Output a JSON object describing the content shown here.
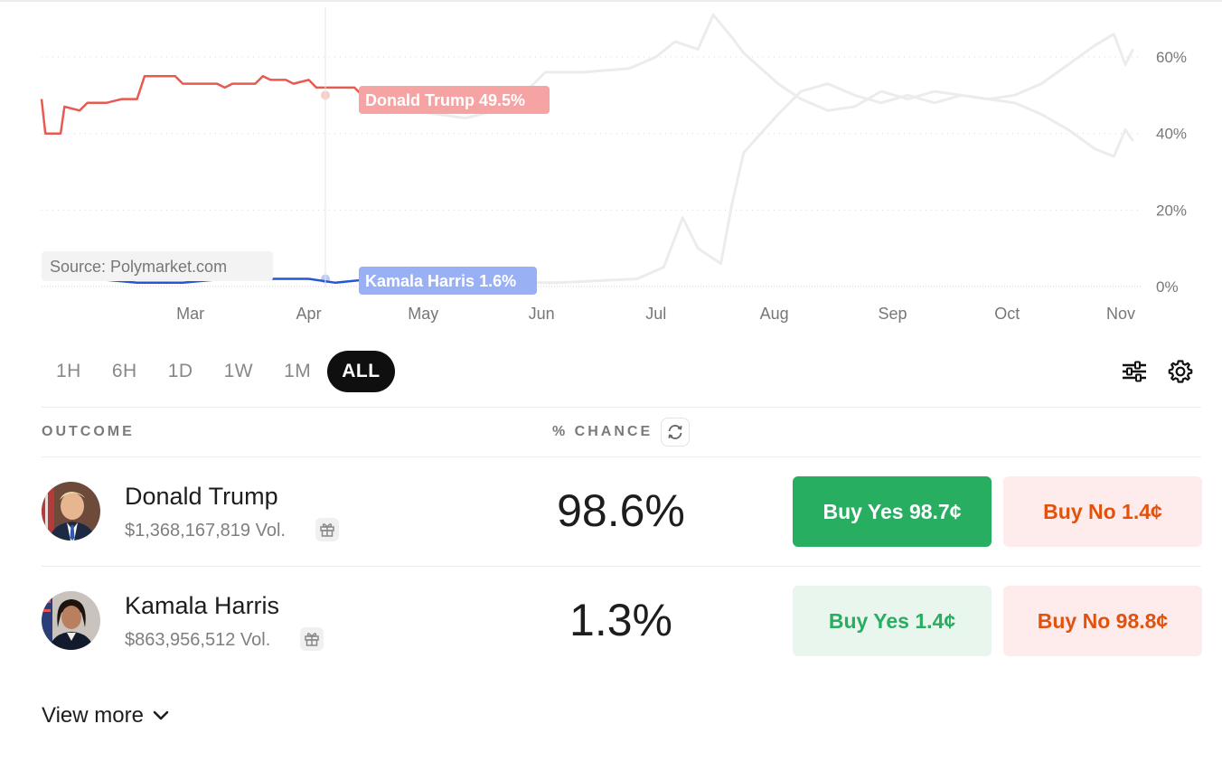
{
  "chart": {
    "source_label": "Source: Polymarket.com",
    "series_labels": [
      {
        "name": "Donald Trump",
        "value": "49.5%",
        "color": "#f5a3a3"
      },
      {
        "name": "Kamala Harris",
        "value": "1.6%",
        "color": "#9ab0f5"
      }
    ]
  },
  "chart_data": {
    "type": "line",
    "x_ticks": [
      "Mar",
      "Apr",
      "May",
      "Jun",
      "Jul",
      "Aug",
      "Sep",
      "Oct",
      "Nov"
    ],
    "y_ticks": [
      "60%",
      "40%",
      "20%",
      "0%"
    ],
    "ylim": [
      0,
      60
    ],
    "grid": true,
    "series": [
      {
        "name": "Donald Trump",
        "color": "#e85a4f",
        "points": [
          [
            "Jan 22",
            49
          ],
          [
            "Jan 23",
            40
          ],
          [
            "Jan 27",
            40
          ],
          [
            "Jan 28",
            47
          ],
          [
            "Feb 1",
            46
          ],
          [
            "Feb 3",
            48
          ],
          [
            "Feb 8",
            48
          ],
          [
            "Feb 12",
            49
          ],
          [
            "Feb 16",
            49
          ],
          [
            "Feb 18",
            55
          ],
          [
            "Feb 26",
            55
          ],
          [
            "Feb 28",
            53
          ],
          [
            "Mar 8",
            53
          ],
          [
            "Mar 10",
            52
          ],
          [
            "Mar 12",
            53
          ],
          [
            "Mar 18",
            53
          ],
          [
            "Mar 20",
            55
          ],
          [
            "Mar 22",
            54
          ],
          [
            "Mar 26",
            54
          ],
          [
            "Mar 28",
            53
          ],
          [
            "Apr 1",
            54
          ],
          [
            "Apr 3",
            52
          ],
          [
            "Apr 13",
            52
          ],
          [
            "Apr 14",
            51
          ],
          [
            "Apr 15",
            50
          ],
          [
            "Apr 18",
            50
          ]
        ],
        "faded_points": [
          [
            "Apr 18",
            50
          ],
          [
            "Apr 28",
            46
          ],
          [
            "May 12",
            44
          ],
          [
            "May 24",
            47
          ],
          [
            "Jun 2",
            56
          ],
          [
            "Jun 12",
            56
          ],
          [
            "Jun 24",
            57
          ],
          [
            "Jul 1",
            60
          ],
          [
            "Jul 6",
            64
          ],
          [
            "Jul 12",
            62
          ],
          [
            "Jul 16",
            71
          ],
          [
            "Jul 21",
            65
          ],
          [
            "Jul 24",
            61
          ],
          [
            "Aug 2",
            53
          ],
          [
            "Aug 8",
            49
          ],
          [
            "Aug 15",
            46
          ],
          [
            "Aug 22",
            47
          ],
          [
            "Aug 29",
            51
          ],
          [
            "Sep 5",
            49
          ],
          [
            "Sep 12",
            51
          ],
          [
            "Sep 19",
            50
          ],
          [
            "Sep 26",
            49
          ],
          [
            "Oct 3",
            50
          ],
          [
            "Oct 10",
            53
          ],
          [
            "Oct 17",
            58
          ],
          [
            "Oct 24",
            63
          ],
          [
            "Oct 29",
            66
          ],
          [
            "Nov 1",
            58
          ],
          [
            "Nov 3",
            62
          ]
        ]
      },
      {
        "name": "Kamala Harris",
        "color": "#2457d6",
        "points": [
          [
            "Jan 22",
            3
          ],
          [
            "Jan 28",
            2
          ],
          [
            "Feb 5",
            2
          ],
          [
            "Feb 16",
            1
          ],
          [
            "Feb 28",
            1
          ],
          [
            "Mar 10",
            2
          ],
          [
            "Mar 22",
            2
          ],
          [
            "Apr 1",
            2
          ],
          [
            "Apr 8",
            1
          ],
          [
            "Apr 18",
            2
          ]
        ],
        "faded_points": [
          [
            "Apr 18",
            2
          ],
          [
            "May 10",
            1
          ],
          [
            "Jun 5",
            1
          ],
          [
            "Jun 26",
            2
          ],
          [
            "Jul 3",
            5
          ],
          [
            "Jul 8",
            18
          ],
          [
            "Jul 12",
            10
          ],
          [
            "Jul 18",
            6
          ],
          [
            "Jul 21",
            22
          ],
          [
            "Jul 24",
            35
          ],
          [
            "Aug 2",
            45
          ],
          [
            "Aug 8",
            51
          ],
          [
            "Aug 15",
            53
          ],
          [
            "Aug 22",
            50
          ],
          [
            "Aug 29",
            48
          ],
          [
            "Sep 5",
            50
          ],
          [
            "Sep 12",
            48
          ],
          [
            "Sep 19",
            50
          ],
          [
            "Sep 26",
            49
          ],
          [
            "Oct 3",
            48
          ],
          [
            "Oct 10",
            45
          ],
          [
            "Oct 17",
            41
          ],
          [
            "Oct 24",
            36
          ],
          [
            "Oct 29",
            34
          ],
          [
            "Nov 1",
            41
          ],
          [
            "Nov 3",
            38
          ]
        ]
      }
    ]
  },
  "time_ranges": [
    "1H",
    "6H",
    "1D",
    "1W",
    "1M",
    "ALL"
  ],
  "active_range": "ALL",
  "table": {
    "col_outcome": "OUTCOME",
    "col_chance": "% CHANCE"
  },
  "outcomes": [
    {
      "name": "Donald Trump",
      "volume": "$1,368,167,819 Vol.",
      "chance": "98.6%",
      "buy_yes": "Buy Yes 98.7¢",
      "buy_no": "Buy No 1.4¢"
    },
    {
      "name": "Kamala Harris",
      "volume": "$863,956,512 Vol.",
      "chance": "1.3%",
      "buy_yes": "Buy Yes 1.4¢",
      "buy_no": "Buy No 98.8¢"
    }
  ],
  "view_more": "View more"
}
